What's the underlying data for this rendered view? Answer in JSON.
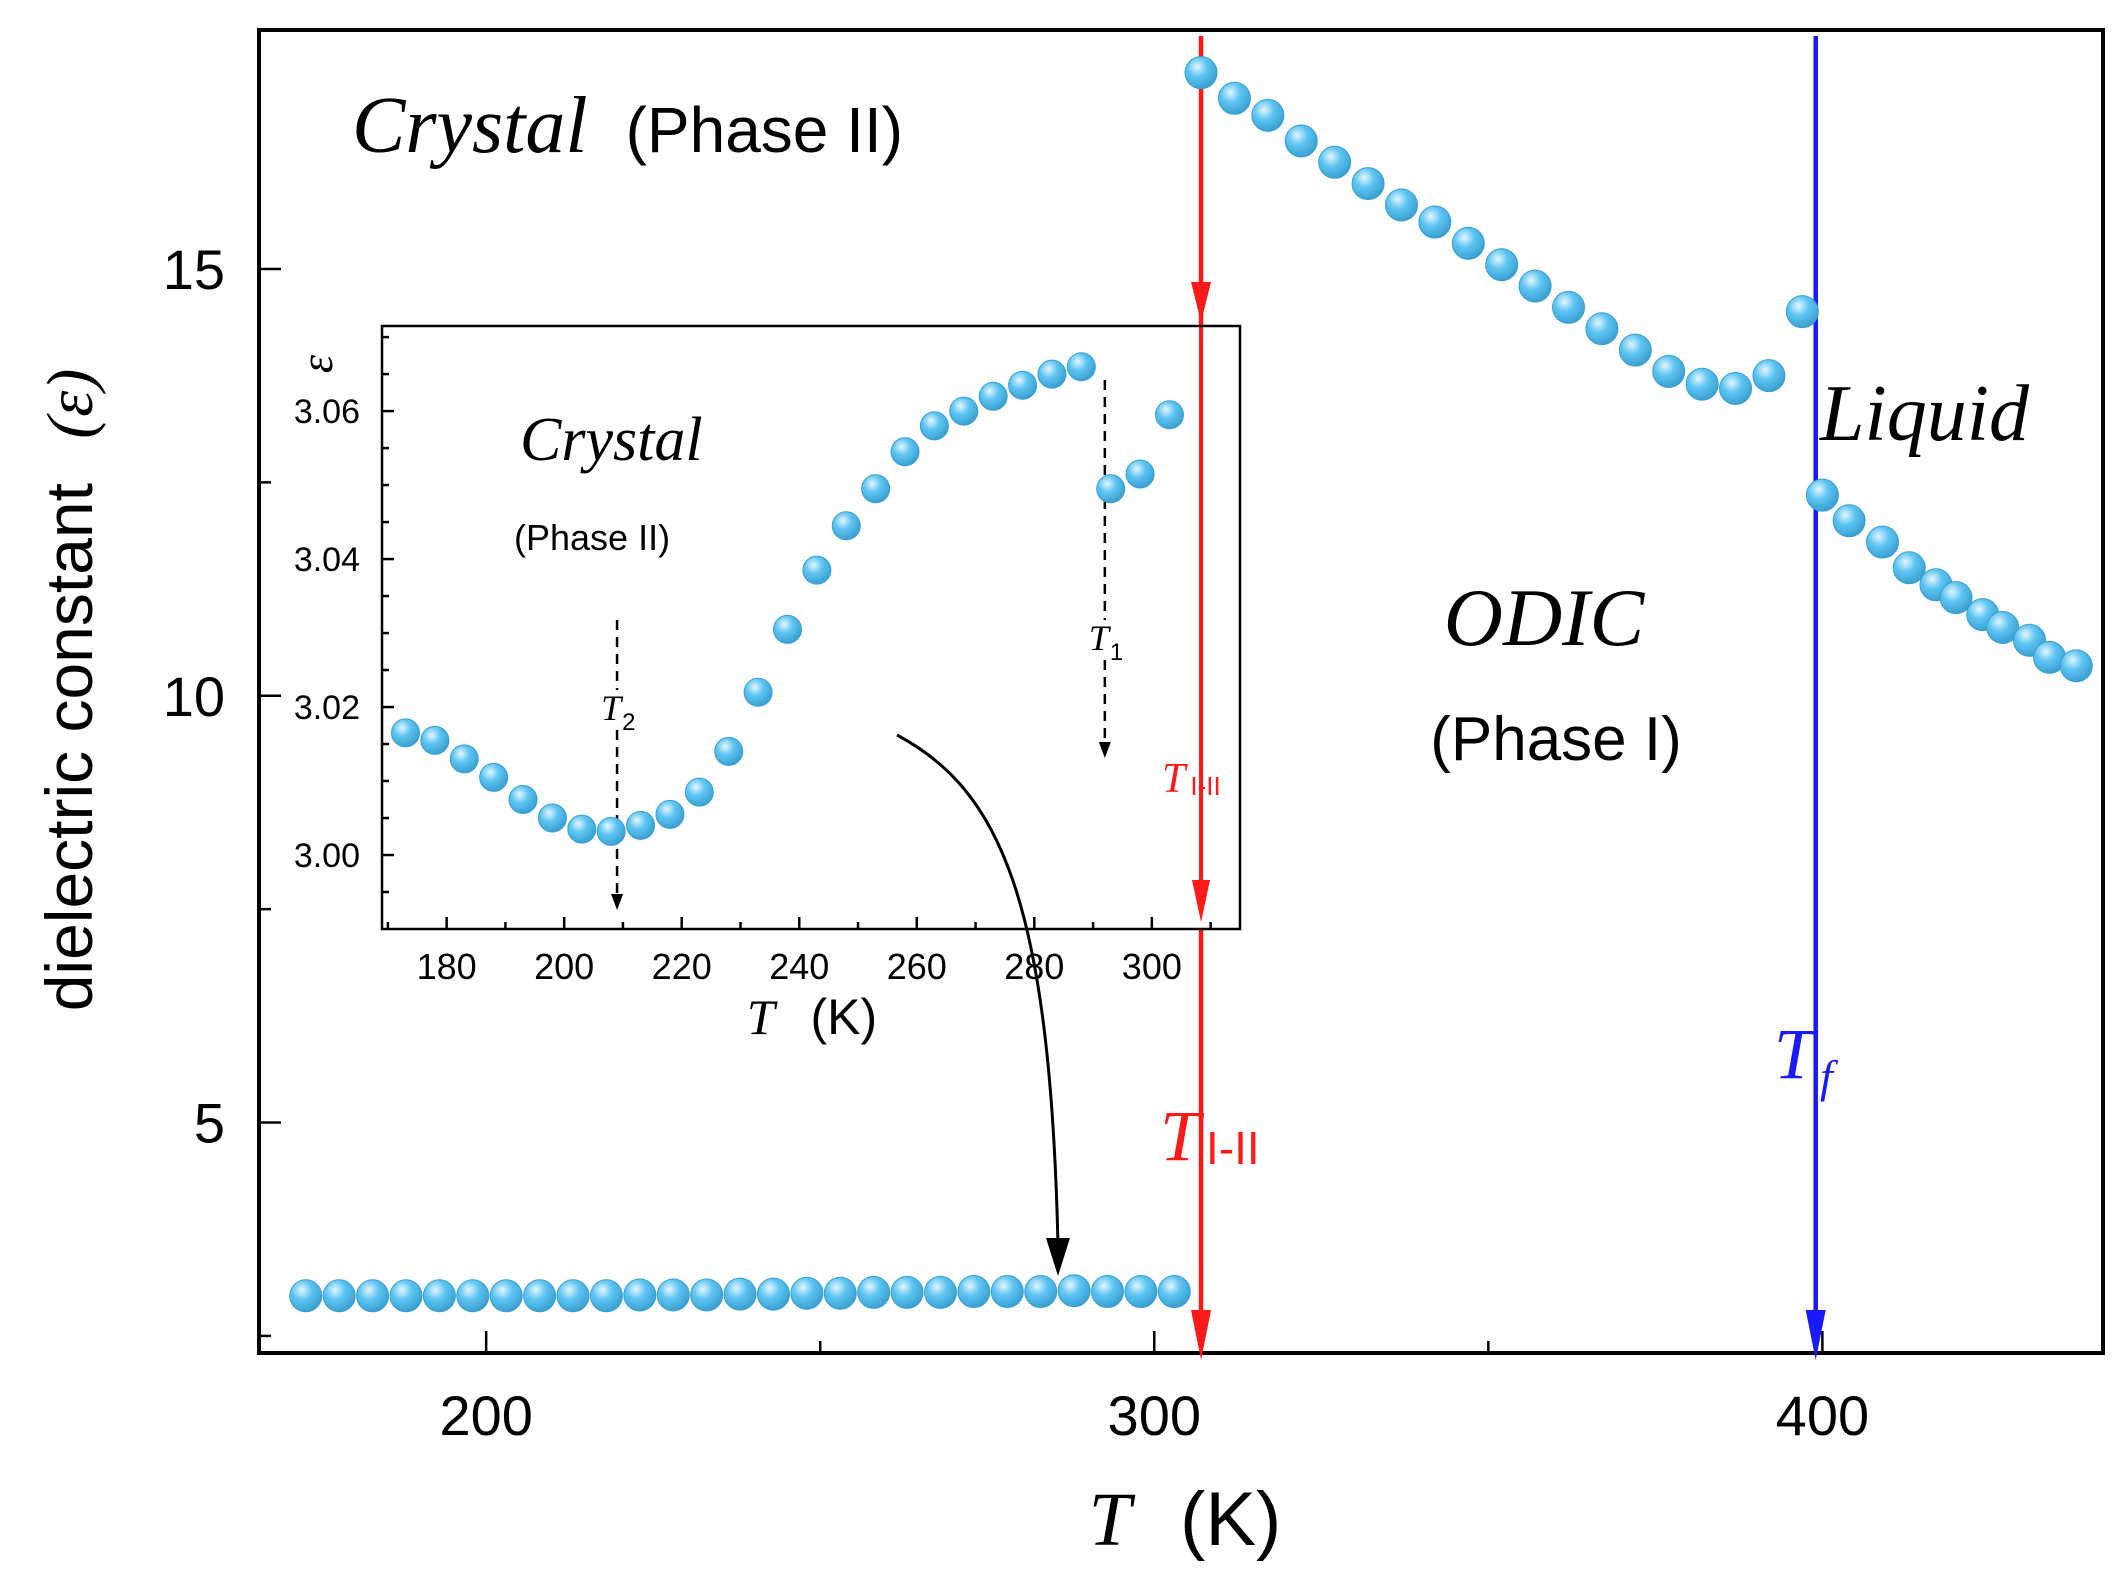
{
  "chart_data": {
    "type": "scatter",
    "main": {
      "xlabel_italic": "T",
      "xlabel_unit": "(K)",
      "ylabel": "dielectric constant",
      "ylabel_symbol": "(ε)",
      "xlim": [
        166,
        442
      ],
      "ylim": [
        2.3,
        17.8
      ],
      "xticks": [
        {
          "value": 200,
          "label": "200"
        },
        {
          "value": 300,
          "label": "300"
        },
        {
          "value": 400,
          "label": "400"
        }
      ],
      "x_minor_ticks": [
        250,
        350
      ],
      "yticks": [
        {
          "value": 5,
          "label": "5"
        },
        {
          "value": 10,
          "label": "10"
        },
        {
          "value": 15,
          "label": "15"
        }
      ],
      "y_minor_ticks": [
        2.5,
        7.5,
        12.5
      ],
      "series": [
        {
          "name": "Crystal (Phase II)",
          "x": [
            173,
            178,
            183,
            188,
            193,
            198,
            203,
            208,
            213,
            218,
            223,
            228,
            233,
            238,
            243,
            248,
            253,
            258,
            263,
            268,
            273,
            278,
            283,
            288,
            293,
            298,
            303
          ],
          "y": [
            2.97,
            2.97,
            2.97,
            2.97,
            2.97,
            2.97,
            2.97,
            2.97,
            2.97,
            2.97,
            2.98,
            2.98,
            2.98,
            2.99,
            2.99,
            3.0,
            3.0,
            3.01,
            3.01,
            3.01,
            3.02,
            3.02,
            3.02,
            3.03,
            3.02,
            3.02,
            3.02
          ]
        },
        {
          "name": "ODIC (Phase I)",
          "x": [
            307,
            312,
            317,
            322,
            327,
            332,
            337,
            342,
            347,
            352,
            357,
            362,
            367,
            372,
            377,
            382,
            387,
            392,
            397
          ],
          "y": [
            17.3,
            17.0,
            16.8,
            16.5,
            16.25,
            16.0,
            15.75,
            15.55,
            15.3,
            15.05,
            14.8,
            14.55,
            14.3,
            14.05,
            13.8,
            13.65,
            13.6,
            13.75,
            14.5
          ]
        },
        {
          "name": "Liquid",
          "x": [
            400,
            404,
            409,
            413,
            417,
            420,
            424,
            427,
            431,
            434,
            438
          ],
          "y": [
            12.35,
            12.05,
            11.8,
            11.5,
            11.3,
            11.15,
            10.95,
            10.8,
            10.65,
            10.45,
            10.35
          ]
        }
      ],
      "vertical_lines": [
        {
          "x": 307,
          "color": "#ff1a1a",
          "label_italic": "T",
          "label_sub": "I-II"
        },
        {
          "x": 399,
          "color": "#1a1aff",
          "label_italic": "T",
          "label_sub": "f"
        }
      ],
      "annotations": {
        "crystal_italic": "Crystal",
        "crystal_phase": "(Phase II)",
        "odic_italic": "ODIC",
        "odic_phase": "(Phase I)",
        "liquid_italic": "Liquid"
      }
    },
    "inset": {
      "xlabel_italic": "T",
      "xlabel_unit": "(K)",
      "ylabel": "ε",
      "xlim": [
        169,
        315
      ],
      "ylim": [
        2.99,
        3.0715
      ],
      "xticks": [
        {
          "value": 180,
          "label": "180"
        },
        {
          "value": 200,
          "label": "200"
        },
        {
          "value": 220,
          "label": "220"
        },
        {
          "value": 240,
          "label": "240"
        },
        {
          "value": 260,
          "label": "260"
        },
        {
          "value": 280,
          "label": "280"
        },
        {
          "value": 300,
          "label": "300"
        }
      ],
      "x_minor_ticks": [
        170,
        190,
        210,
        230,
        250,
        270,
        290,
        310
      ],
      "yticks": [
        {
          "value": 3.0,
          "label": "3.00"
        },
        {
          "value": 3.02,
          "label": "3.02"
        },
        {
          "value": 3.04,
          "label": "3.04"
        },
        {
          "value": 3.06,
          "label": "3.06"
        }
      ],
      "y_minor_ticks": [
        2.995,
        3.005,
        3.01,
        3.015,
        3.025,
        3.03,
        3.035,
        3.045,
        3.05,
        3.055,
        3.065,
        3.07
      ],
      "series": [
        {
          "name": "Crystal (Phase II)",
          "x": [
            173,
            178,
            183,
            188,
            193,
            198,
            203,
            208,
            213,
            218,
            223,
            228,
            233,
            238,
            243,
            248,
            253,
            258,
            263,
            268,
            273,
            278,
            283,
            288,
            293,
            298,
            303
          ],
          "y": [
            3.0165,
            3.0155,
            3.013,
            3.0105,
            3.0075,
            3.005,
            3.0035,
            3.0032,
            3.004,
            3.0055,
            3.0085,
            3.014,
            3.022,
            3.0305,
            3.0385,
            3.0445,
            3.0495,
            3.0545,
            3.058,
            3.06,
            3.062,
            3.0635,
            3.065,
            3.066,
            3.0495,
            3.0515,
            3.0595
          ]
        }
      ],
      "markers": [
        {
          "x": 209,
          "label_italic": "T",
          "label_sub": "2"
        },
        {
          "x": 292,
          "label_italic": "T",
          "label_sub": "1"
        }
      ],
      "annotations": {
        "crystal_italic": "Crystal",
        "crystal_phase": "(Phase II)",
        "transition_italic": "T",
        "transition_sub": "I-II"
      }
    },
    "colors": {
      "point": "#5cc4f2",
      "point_highlight": "#e4f6ff",
      "point_edge": "#3a9fd0",
      "red": "#ff1a1a",
      "blue": "#1a1aff",
      "axis": "#000000"
    }
  }
}
